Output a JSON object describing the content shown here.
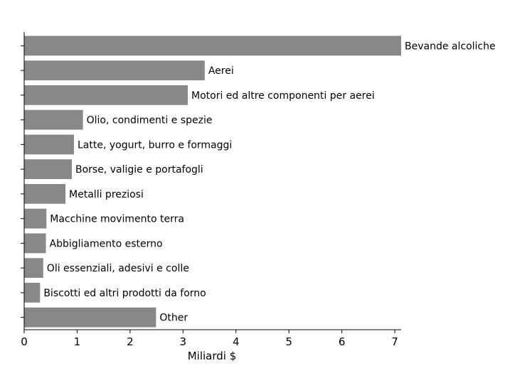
{
  "chart_data": {
    "type": "bar",
    "orientation": "horizontal",
    "categories": [
      "Bevande alcoliche",
      "Aerei",
      "Motori ed altre componenti per aerei",
      "Olio, condimenti e spezie",
      "Latte, yogurt, burro e formaggi",
      "Borse, valigie e portafogli",
      "Metalli preziosi",
      "Macchine movimento terra",
      "Abbigliamento esterno",
      "Oli essenziali, adesivi e colle",
      "Biscotti ed altri prodotti da forno",
      "Other"
    ],
    "values": [
      7.12,
      3.41,
      3.09,
      1.11,
      0.94,
      0.9,
      0.78,
      0.42,
      0.41,
      0.36,
      0.3,
      2.49
    ],
    "xlabel": "Miliardi $",
    "ylabel": "",
    "title": "",
    "xlim": [
      0,
      7.12
    ],
    "xticks": [
      "0",
      "1",
      "2",
      "3",
      "4",
      "5",
      "6",
      "7"
    ],
    "bar_color": "#888888",
    "grid": false,
    "legend": "none"
  }
}
